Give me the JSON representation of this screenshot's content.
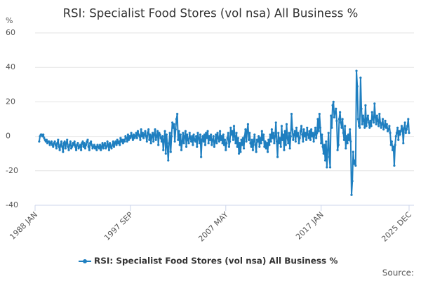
{
  "chart_data": {
    "type": "line",
    "title": "RSI: Specialist Food Stores (vol nsa) All Business %",
    "y_unit": "%",
    "source": "Source:",
    "ylim": [
      -40,
      60
    ],
    "yticks": [
      60,
      40,
      20,
      0,
      -20,
      -40
    ],
    "grid": true,
    "categories": [
      "1988 JAN",
      null,
      null,
      null,
      null,
      null,
      null,
      null,
      null,
      null,
      null,
      null,
      null,
      null,
      null,
      null,
      null,
      null,
      null,
      null,
      null,
      null,
      null,
      null,
      null,
      null,
      null,
      null,
      null,
      null,
      null,
      null,
      null,
      null,
      null,
      null,
      null,
      null,
      null,
      null,
      null,
      null,
      null,
      null,
      null,
      null,
      null,
      null,
      null,
      null,
      null,
      null,
      null,
      null,
      null,
      null,
      null,
      null,
      null,
      null,
      null,
      null,
      null,
      null,
      null,
      null,
      null,
      null,
      null,
      null,
      null,
      null,
      null,
      null,
      null,
      null,
      null,
      null,
      null,
      null,
      null,
      null,
      null,
      null,
      null,
      null,
      null,
      null,
      null,
      null,
      null,
      null,
      null,
      null,
      null,
      null,
      null,
      null,
      null,
      null,
      null,
      null,
      null,
      null,
      null,
      null,
      null,
      null,
      null,
      null,
      null,
      null,
      null,
      null,
      null,
      null,
      "1997 SEP",
      null,
      null,
      null,
      null,
      null,
      null,
      null,
      null,
      null,
      null,
      null,
      null,
      null,
      null,
      null,
      null,
      null,
      null,
      null,
      null,
      null,
      null,
      null,
      null,
      null,
      null,
      null,
      null,
      null,
      null,
      null,
      null,
      null,
      null,
      null,
      null,
      null,
      null,
      null,
      null,
      null,
      null,
      null,
      null,
      null,
      null,
      null,
      null,
      null,
      null,
      null,
      null,
      null,
      null,
      null,
      null,
      null,
      null,
      null,
      null,
      null,
      null,
      null,
      null,
      null,
      null,
      null,
      null,
      null,
      null,
      null,
      null,
      null,
      null,
      null,
      null,
      null,
      null,
      null,
      null,
      null,
      null,
      null,
      null,
      null,
      null,
      null,
      null,
      null,
      null,
      null,
      null,
      null,
      null,
      null,
      null,
      null,
      null,
      null,
      null,
      null,
      null,
      null,
      null,
      null,
      null,
      null,
      null,
      null,
      null,
      null,
      null,
      null,
      null,
      null,
      "2007 MAY",
      null,
      null,
      null,
      null,
      null,
      null,
      null,
      null,
      null,
      null,
      null,
      null,
      null,
      null,
      null,
      null,
      null,
      null,
      null,
      null,
      null,
      null,
      null,
      null,
      null,
      null,
      null,
      null,
      null,
      null,
      null,
      null,
      null,
      null,
      null,
      null,
      null,
      null,
      null,
      null,
      null,
      null,
      null,
      null,
      null,
      null,
      null,
      null,
      null,
      null,
      null,
      null,
      null,
      null,
      null,
      null,
      null,
      null,
      null,
      null,
      null,
      null,
      null,
      null,
      null,
      null,
      null,
      null,
      null,
      null,
      null,
      null,
      null,
      null,
      null,
      null,
      null,
      null,
      null,
      null,
      null,
      null,
      null,
      null,
      null,
      null,
      null,
      null,
      null,
      null,
      null,
      null,
      null,
      null,
      null,
      null,
      null,
      null,
      null,
      null,
      null,
      null,
      null,
      null,
      null,
      null,
      null,
      null,
      null,
      null,
      null,
      null,
      null,
      null,
      null,
      "2017 JAN",
      null,
      null,
      null,
      null,
      null,
      null,
      null,
      null,
      null,
      null,
      null,
      null,
      null,
      null,
      null,
      null,
      null,
      null,
      null,
      null,
      null,
      null,
      null,
      null,
      null,
      null,
      null,
      null,
      null,
      null,
      null,
      null,
      null,
      null,
      null,
      null,
      null,
      null,
      null,
      null,
      null,
      null,
      null,
      null,
      null,
      null,
      null,
      null,
      null,
      null,
      null,
      null,
      null,
      null,
      null,
      null,
      null,
      null,
      null,
      null,
      null,
      null,
      null,
      null,
      null,
      null,
      null,
      null,
      null,
      null,
      null,
      null,
      null,
      null,
      null,
      null,
      null,
      null,
      null,
      null,
      null,
      null,
      null,
      null,
      null,
      null,
      null,
      null,
      null,
      null,
      null,
      null,
      null,
      null,
      null,
      null,
      null,
      null,
      null,
      null,
      null,
      null,
      null,
      null,
      null,
      null,
      "2025 DEC"
    ],
    "series": [
      {
        "name": "RSI: Specialist Food Stores (vol nsa) All Business %",
        "color": "#1f7fc0",
        "values": [
          null,
          null,
          null,
          null,
          null,
          -3,
          0,
          1,
          1,
          0,
          1,
          -1,
          -2,
          -3,
          -2,
          -4,
          -3,
          -3,
          -5,
          -4,
          -3,
          -5,
          -6,
          -4,
          -3,
          -5,
          -7,
          -4,
          -2,
          -6,
          -8,
          -5,
          -3,
          -6,
          -9,
          -4,
          -3,
          -7,
          -4,
          -2,
          -6,
          -8,
          -5,
          -3,
          -7,
          -6,
          -4,
          -5,
          -3,
          -6,
          -8,
          -5,
          -4,
          -7,
          -6,
          -5,
          -8,
          -4,
          -3,
          -6,
          -4,
          -7,
          -5,
          -3,
          -2,
          -6,
          -8,
          -4,
          -3,
          -5,
          -7,
          -6,
          -5,
          -7,
          -6,
          -8,
          -5,
          -6,
          -7,
          -5,
          -8,
          -6,
          -4,
          -7,
          -5,
          -4,
          -7,
          -6,
          -3,
          -5,
          -8,
          -4,
          -6,
          -7,
          -5,
          -3,
          -6,
          -4,
          -3,
          -5,
          -2,
          -4,
          -3,
          -5,
          -1,
          -3,
          -2,
          -4,
          -2,
          -3,
          0,
          -1,
          -3,
          1,
          -2,
          0,
          -1,
          2,
          0,
          -2,
          1,
          -1,
          0,
          2,
          -1,
          3,
          1,
          0,
          -2,
          4,
          0,
          2,
          -1,
          1,
          3,
          0,
          -3,
          2,
          4,
          -2,
          1,
          -4,
          0,
          2,
          -3,
          1,
          4,
          -2,
          0,
          3,
          -5,
          2,
          1,
          -1,
          -3,
          0,
          -8,
          -2,
          3,
          -10,
          1,
          -6,
          -14,
          -4,
          2,
          -9,
          0,
          8,
          5,
          7,
          -3,
          4,
          10,
          13,
          -2,
          3,
          -5,
          1,
          -8,
          -3,
          2,
          -4,
          0,
          3,
          -6,
          1,
          -2,
          -4,
          2,
          -1,
          -3,
          0,
          -5,
          1,
          -2,
          -3,
          0,
          -6,
          2,
          -1,
          -4,
          1,
          -12,
          -2,
          0,
          -3,
          1,
          -5,
          2,
          -1,
          3,
          -4,
          0,
          -2,
          1,
          -5,
          -2,
          0,
          -6,
          -3,
          1,
          -4,
          2,
          -1,
          -3,
          3,
          -2,
          0,
          -4,
          1,
          -5,
          -2,
          -8,
          -4,
          -1,
          2,
          -6,
          -3,
          5,
          1,
          3,
          -2,
          6,
          0,
          -4,
          2,
          -6,
          -1,
          -10,
          -4,
          -9,
          -2,
          -5,
          -1,
          -7,
          0,
          4,
          -3,
          3,
          7,
          -2,
          2,
          -4,
          -6,
          -2,
          -8,
          -3,
          1,
          -5,
          -9,
          -2,
          -3,
          0,
          -6,
          -1,
          -4,
          3,
          -2,
          1,
          -6,
          -3,
          -7,
          -4,
          -9,
          -2,
          -5,
          1,
          -3,
          4,
          -1,
          2,
          -4,
          0,
          8,
          -3,
          -12,
          2,
          -4,
          -1,
          -6,
          6,
          -2,
          1,
          -8,
          3,
          -5,
          7,
          -1,
          -4,
          2,
          -7,
          0,
          13,
          4,
          -2,
          1,
          3,
          -3,
          5,
          0,
          2,
          -4,
          -1,
          3,
          6,
          1,
          -3,
          4,
          0,
          2,
          -2,
          5,
          1,
          -1,
          3,
          -2,
          4,
          0,
          2,
          -3,
          1,
          5,
          -1,
          2,
          10,
          3,
          13,
          5,
          -4,
          1,
          -6,
          -10,
          -5,
          -14,
          -3,
          -18,
          -8,
          2,
          -12,
          -18,
          12,
          5,
          18,
          20,
          11,
          14,
          16,
          9,
          -8,
          -5,
          10,
          14,
          8,
          5,
          10,
          2,
          -2,
          6,
          -7,
          0,
          -4,
          1,
          -2,
          4,
          -3,
          -34,
          -26,
          -9,
          -16,
          -14,
          -17,
          38,
          29,
          10,
          6,
          5,
          34,
          16,
          7,
          12,
          9,
          5,
          18,
          6,
          10,
          12,
          8,
          5,
          9,
          6,
          14,
          10,
          8,
          19,
          11,
          7,
          12,
          9,
          6,
          13,
          8,
          5,
          7,
          10,
          4,
          6,
          9,
          5,
          7,
          3,
          4,
          6,
          2,
          -5,
          -3,
          -8,
          -6,
          -17,
          -5,
          0,
          2,
          5,
          -2,
          3,
          1,
          3,
          6,
          4,
          -4,
          5,
          8,
          2,
          4,
          6,
          10,
          2
        ]
      }
    ]
  }
}
